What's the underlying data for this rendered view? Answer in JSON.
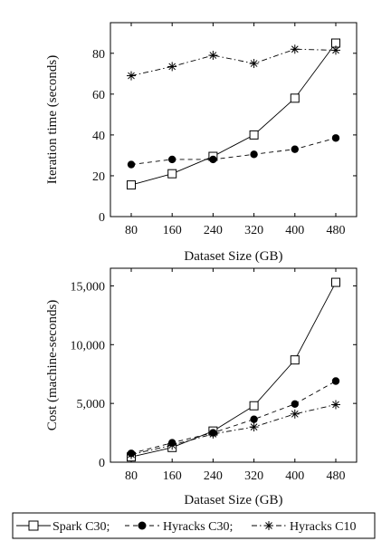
{
  "chart_data": [
    {
      "type": "line",
      "title": "",
      "xlabel": "Dataset Size (GB)",
      "ylabel": "Iteration time (seconds)",
      "x": [
        80,
        160,
        240,
        320,
        400,
        480
      ],
      "xticks": [
        "80",
        "160",
        "240",
        "320",
        "400",
        "480"
      ],
      "ylim": [
        0,
        95
      ],
      "yticks": [
        0,
        20,
        40,
        60,
        80
      ],
      "ytick_labels": [
        "0",
        "20",
        "40",
        "60",
        "80"
      ],
      "grid": false,
      "series": [
        {
          "name": "Spark C30",
          "values": [
            15.5,
            21,
            29.5,
            40,
            58,
            85
          ],
          "marker": "square",
          "line": "solid",
          "color": "#000000"
        },
        {
          "name": "Hyracks C30",
          "values": [
            25.5,
            28,
            28,
            30.5,
            33,
            38.5
          ],
          "marker": "circle",
          "line": "dashed",
          "color": "#000000"
        },
        {
          "name": "Hyracks C10",
          "values": [
            69,
            73.5,
            79,
            75,
            82,
            81.5
          ],
          "marker": "star",
          "line": "dash-dot",
          "color": "#000000"
        }
      ]
    },
    {
      "type": "line",
      "title": "",
      "xlabel": "Dataset Size (GB)",
      "ylabel": "Cost (machine-seconds)",
      "x": [
        80,
        160,
        240,
        320,
        400,
        480
      ],
      "xticks": [
        "80",
        "160",
        "240",
        "320",
        "400",
        "480"
      ],
      "ylim": [
        0,
        16500
      ],
      "yticks": [
        0,
        5000,
        10000,
        15000
      ],
      "ytick_labels": [
        "0",
        "5,000",
        "10,000",
        "15,000"
      ],
      "grid": false,
      "series": [
        {
          "name": "Spark C30",
          "values": [
            450,
            1250,
            2650,
            4800,
            8700,
            15300
          ],
          "marker": "square",
          "line": "solid",
          "color": "#000000"
        },
        {
          "name": "Hyracks C30",
          "values": [
            750,
            1650,
            2500,
            3650,
            4950,
            6900
          ],
          "marker": "circle",
          "line": "dashed",
          "color": "#000000"
        },
        {
          "name": "Hyracks C10",
          "values": [
            650,
            1450,
            2400,
            3000,
            4100,
            4900
          ],
          "marker": "star",
          "line": "dash-dot",
          "color": "#000000"
        }
      ]
    }
  ],
  "legend": {
    "placement": "bottom",
    "items": [
      "Spark C30;",
      "Hyracks C30;",
      "Hyracks C10"
    ]
  }
}
